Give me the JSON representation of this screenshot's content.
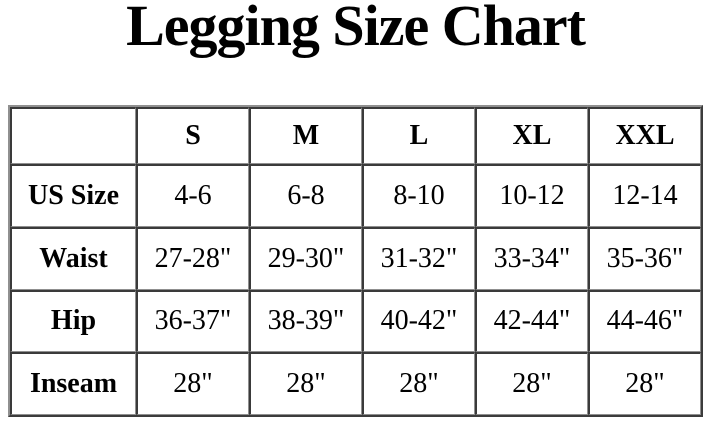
{
  "title": "Legging Size Chart",
  "colors": {
    "background": "#ffffff",
    "text": "#000000",
    "border_dark": "#3a3a3a",
    "border_light": "#8f8f8f"
  },
  "chart_data": {
    "type": "table",
    "title": "Legging Size Chart",
    "columns": [
      "",
      "S",
      "M",
      "L",
      "XL",
      "XXL"
    ],
    "rows": [
      {
        "label": "US Size",
        "values": [
          "4-6",
          "6-8",
          "8-10",
          "10-12",
          "12-14"
        ]
      },
      {
        "label": "Waist",
        "values": [
          "27-28\"",
          "29-30\"",
          "31-32\"",
          "33-34\"",
          "35-36\""
        ]
      },
      {
        "label": "Hip",
        "values": [
          "36-37\"",
          "38-39\"",
          "40-42\"",
          "42-44\"",
          "44-46\""
        ]
      },
      {
        "label": "Inseam",
        "values": [
          "28\"",
          "28\"",
          "28\"",
          "28\"",
          "28\""
        ]
      }
    ]
  }
}
